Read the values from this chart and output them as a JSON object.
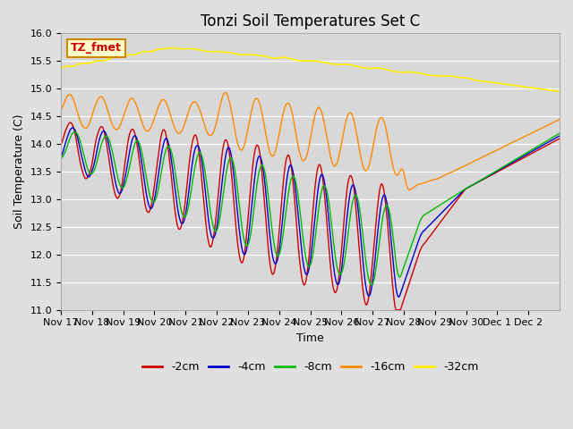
{
  "title": "Tonzi Soil Temperatures Set C",
  "xlabel": "Time",
  "ylabel": "Soil Temperature (C)",
  "ylim": [
    11.0,
    16.0
  ],
  "yticks": [
    11.0,
    11.5,
    12.0,
    12.5,
    13.0,
    13.5,
    14.0,
    14.5,
    15.0,
    15.5,
    16.0
  ],
  "xtick_labels": [
    "Nov 17",
    "Nov 18",
    "Nov 19",
    "Nov 20",
    "Nov 21",
    "Nov 22",
    "Nov 23",
    "Nov 24",
    "Nov 25",
    "Nov 26",
    "Nov 27",
    "Nov 28",
    "Nov 29",
    "Nov 30",
    "Dec 1",
    "Dec 2"
  ],
  "series_colors": [
    "#cc0000",
    "#0000cc",
    "#00bb00",
    "#ff8800",
    "#ffee00"
  ],
  "series_names": [
    "-2cm",
    "-4cm",
    "-8cm",
    "-16cm",
    "-32cm"
  ],
  "bg_color": "#e8e8e8",
  "plot_bg_color": "#d8d8d8",
  "annotation_text": "TZ_fmet",
  "annotation_bg": "#ffffcc",
  "annotation_border": "#cc8800",
  "n_points": 528
}
